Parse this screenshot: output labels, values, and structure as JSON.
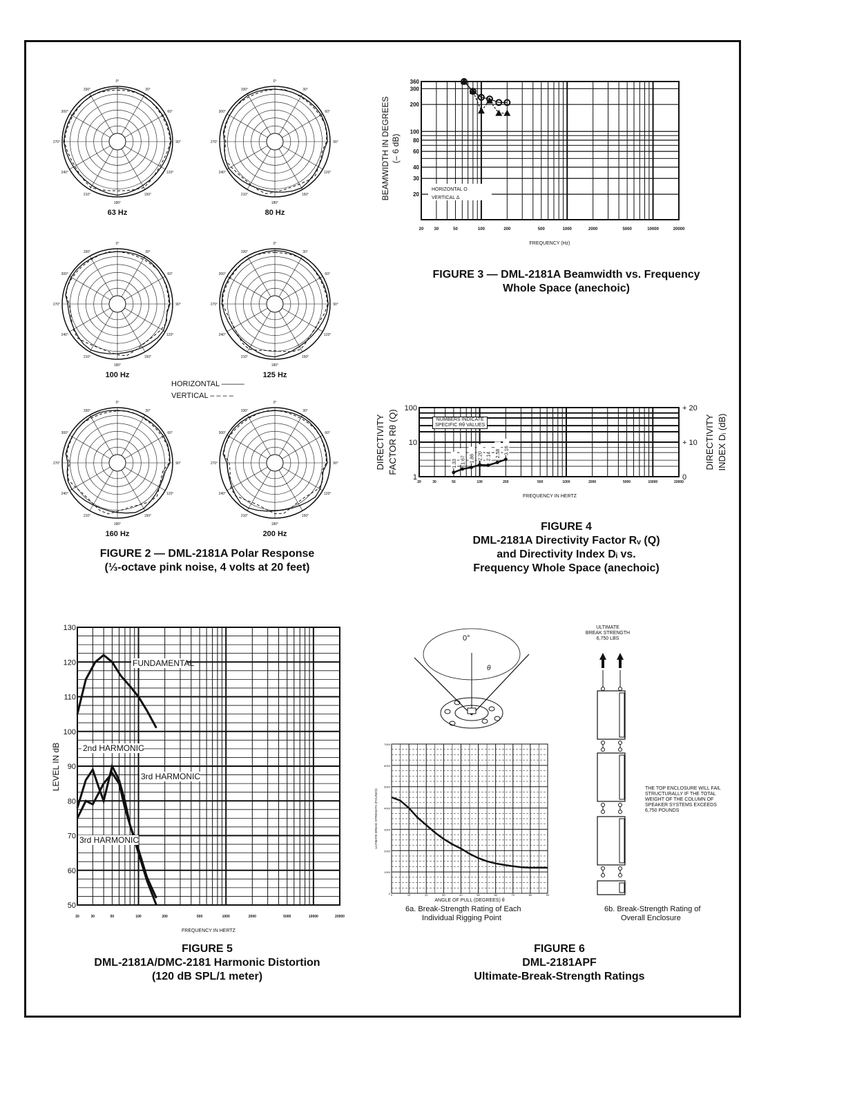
{
  "fig2": {
    "caption1": "FIGURE 2 — DML-2181A Polar Response",
    "caption2": "(⅓-octave pink noise, 4 volts at 20 feet)",
    "freqs": [
      "63 Hz",
      "80 Hz",
      "100 Hz",
      "125 Hz",
      "160 Hz",
      "200 Hz"
    ],
    "angles": [
      "0°",
      "30°",
      "60°",
      "90°",
      "120°",
      "150°",
      "180°",
      "210°",
      "240°",
      "270°",
      "300°",
      "330°"
    ],
    "legend_h": "HORIZONTAL ———",
    "legend_v": "VERTICAL – – – –"
  },
  "fig3": {
    "caption1": "FIGURE 3 — DML-2181A Beamwidth vs. Frequency",
    "caption2": "Whole Space (anechoic)"
  },
  "fig4": {
    "caption1": "FIGURE 4",
    "caption2": "DML-2181A Directivity Factor Rᵥ (Q)",
    "caption3": "and Directivity Index Dᵢ vs.",
    "caption4": "Frequency Whole Space (anechoic)",
    "note1": "NUMBERS INDICATE",
    "note2": "SPECIFIC Rθ VALUES"
  },
  "fig5": {
    "caption1": "FIGURE 5",
    "caption2": "DML-2181A/DMC-2181 Harmonic Distortion",
    "caption3": "(120 dB SPL/1 meter)"
  },
  "fig6": {
    "caption1": "FIGURE 6",
    "caption2": "DML-2181APF",
    "caption3": "Ultimate-Break-Strength Ratings",
    "angle0": "0°",
    "theta": "θ",
    "sub_a1": "6a.  Break-Strength Rating of Each",
    "sub_a2": "Individual Rigging Point",
    "sub_b1": "6b.  Break-Strength Rating of",
    "sub_b2": "Overall Enclosure",
    "ubs1": "ULTIMATE",
    "ubs2": "BREAK STRENGTH",
    "ubs3": "6,750 LBS",
    "note": [
      "THE TOP ENCLOSURE WILL FAIL",
      "STRUCTURALLY IF THE TOTAL",
      "WEIGHT OF THE COLUMN OF",
      "SPEAKER SYSTEMS EXCEEDS",
      "6,750 POUNDS"
    ]
  },
  "chart_data": [
    {
      "id": "fig3",
      "type": "scatter",
      "xlabel": "FREQUENCY (Hz)",
      "ylabel": "BEAMWIDTH IN DEGREES",
      "ylabel2": "(– 6 dB)",
      "xscale": "log",
      "yscale": "log",
      "xlim": [
        20,
        20000
      ],
      "ylim": [
        10.4,
        360
      ],
      "xticks": [
        20,
        30,
        50,
        100,
        200,
        500,
        1000,
        2000,
        5000,
        10000,
        20000
      ],
      "yticks": [
        20,
        30,
        40,
        60,
        80,
        100,
        200,
        300,
        360
      ],
      "series": [
        {
          "name": "HORIZONTAL",
          "marker": "circle",
          "x": [
            63,
            80,
            100,
            125,
            160,
            200
          ],
          "y": [
            360,
            280,
            240,
            230,
            210,
            210
          ]
        },
        {
          "name": "VERTICAL",
          "marker": "triangle",
          "x": [
            63,
            80,
            100,
            125,
            160,
            200
          ],
          "y": [
            360,
            280,
            170,
            220,
            160,
            160
          ]
        }
      ],
      "grid": true,
      "legend": "bottom-left"
    },
    {
      "id": "fig4",
      "type": "line",
      "xlabel": "FREQUENCY IN HERTZ",
      "ylabel": "DIRECTIVITY",
      "ylabel2": "FACTOR Rθ (Q)",
      "ylabel_right": "DIRECTIVITY",
      "ylabel_right2": "INDEX Dᵢ (dB)",
      "xscale": "log",
      "yscale": "log",
      "xlim": [
        20,
        20000
      ],
      "ylim": [
        1,
        100
      ],
      "xticks": [
        20,
        30,
        50,
        100,
        200,
        500,
        1000,
        2000,
        5000,
        10000,
        20000
      ],
      "yticks": [
        1,
        10,
        100
      ],
      "yticks_right": [
        "0",
        "+ 10",
        "+ 20"
      ],
      "x": [
        50,
        63,
        80,
        100,
        125,
        160,
        200
      ],
      "values": [
        1.33,
        1.67,
        1.86,
        2.2,
        2.14,
        2.58,
        3.16
      ],
      "grid": true
    },
    {
      "id": "fig5",
      "type": "line",
      "xlabel": "FREQUENCY IN HERTZ",
      "ylabel": "LEVEL IN dB",
      "xscale": "log",
      "xlim": [
        20,
        20000
      ],
      "ylim": [
        50,
        130
      ],
      "xticks": [
        20,
        30,
        50,
        100,
        200,
        500,
        1000,
        2000,
        5000,
        10000,
        20000
      ],
      "yticks": [
        50,
        60,
        70,
        80,
        90,
        100,
        110,
        120,
        130
      ],
      "series": [
        {
          "name": "FUNDAMENTAL",
          "x": [
            20,
            25,
            32,
            40,
            50,
            63,
            80,
            100,
            125,
            160
          ],
          "y": [
            105,
            115,
            120,
            122,
            120,
            116,
            113,
            110,
            106,
            101
          ]
        },
        {
          "name": "2nd HARMONIC",
          "x": [
            20,
            25,
            30,
            35,
            40,
            50,
            60,
            70,
            80,
            100,
            125,
            160
          ],
          "y": [
            78,
            86,
            89,
            84,
            80,
            90,
            86,
            80,
            73,
            66,
            58,
            52
          ]
        },
        {
          "name": "3rd HARMONIC",
          "x": [
            20,
            25,
            30,
            40,
            50,
            60,
            70,
            80,
            100,
            125,
            160
          ],
          "y": [
            75,
            80,
            79,
            85,
            88,
            85,
            78,
            73,
            65,
            57,
            50
          ]
        }
      ],
      "grid": true
    },
    {
      "id": "fig6a",
      "type": "line",
      "xlabel": "ANGLE OF PULL (DEGREES) θ",
      "ylabel": "ULTIMATE BREAK STRENGTH (POUNDS)",
      "xlim": [
        0,
        90
      ],
      "ylim": [
        0,
        7000
      ],
      "xticks": [
        0,
        10,
        20,
        30,
        40,
        50,
        60,
        70,
        80,
        90
      ],
      "yticks": [
        0,
        1000,
        2000,
        3000,
        4000,
        5000,
        6000,
        7000
      ],
      "x": [
        0,
        5,
        10,
        15,
        20,
        25,
        30,
        35,
        40,
        45,
        50,
        55,
        60,
        65,
        70,
        75,
        80,
        90
      ],
      "values": [
        4500,
        4350,
        4000,
        3550,
        3200,
        2850,
        2550,
        2300,
        2100,
        1850,
        1650,
        1500,
        1400,
        1330,
        1270,
        1220,
        1200,
        1200
      ],
      "grid": true
    }
  ]
}
